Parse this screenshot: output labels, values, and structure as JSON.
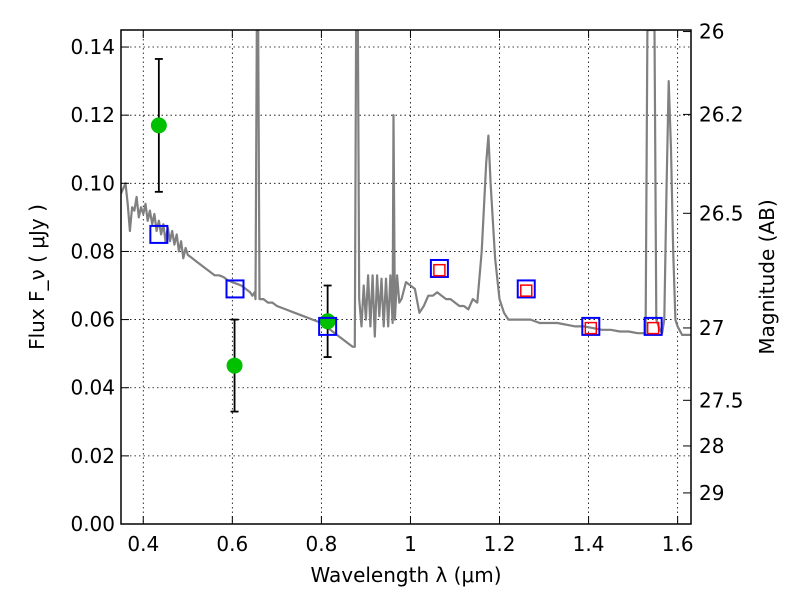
{
  "chart_data": {
    "type": "scatter",
    "xlabel": "Wavelength  λ (μm)",
    "ylabel": "Flux  F_ν  ( μJy )",
    "ylabel_right": "Magnitude (AB)",
    "xlim": [
      0.35,
      1.63
    ],
    "ylim": [
      0.0,
      0.145
    ],
    "grid": true,
    "x_ticks": [
      0.4,
      0.6,
      0.8,
      1.0,
      1.2,
      1.4,
      1.6
    ],
    "x_tick_labels": [
      "0.4",
      "0.6",
      "0.8",
      "1",
      "1.2",
      "1.4",
      "1.6"
    ],
    "y_ticks": [
      0.0,
      0.02,
      0.04,
      0.06,
      0.08,
      0.1,
      0.12,
      0.14
    ],
    "y_tick_labels": [
      "0.00",
      "0.02",
      "0.04",
      "0.06",
      "0.08",
      "0.10",
      "0.12",
      "0.14"
    ],
    "right_ticks": [
      {
        "label": "26",
        "mag": 26.0
      },
      {
        "label": "26.2",
        "mag": 26.2
      },
      {
        "label": "26.5",
        "mag": 26.5
      },
      {
        "label": "27",
        "mag": 27.0
      },
      {
        "label": "27.5",
        "mag": 27.5
      },
      {
        "label": "28",
        "mag": 28.0
      },
      {
        "label": "29",
        "mag": 29.0
      }
    ],
    "series": [
      {
        "marker": "line",
        "color": "#808080",
        "points": [
          [
            0.35,
            0.097
          ],
          [
            0.36,
            0.1
          ],
          [
            0.365,
            0.094
          ],
          [
            0.37,
            0.086
          ],
          [
            0.375,
            0.093
          ],
          [
            0.38,
            0.092
          ],
          [
            0.385,
            0.096
          ],
          [
            0.39,
            0.09
          ],
          [
            0.395,
            0.093
          ],
          [
            0.4,
            0.091
          ],
          [
            0.405,
            0.094
          ],
          [
            0.41,
            0.089
          ],
          [
            0.415,
            0.092
          ],
          [
            0.42,
            0.088
          ],
          [
            0.425,
            0.091
          ],
          [
            0.43,
            0.086
          ],
          [
            0.435,
            0.089
          ],
          [
            0.44,
            0.085
          ],
          [
            0.445,
            0.088
          ],
          [
            0.45,
            0.083
          ],
          [
            0.455,
            0.087
          ],
          [
            0.46,
            0.083
          ],
          [
            0.465,
            0.086
          ],
          [
            0.47,
            0.082
          ],
          [
            0.475,
            0.085
          ],
          [
            0.48,
            0.08
          ],
          [
            0.485,
            0.083
          ],
          [
            0.49,
            0.078
          ],
          [
            0.495,
            0.081
          ],
          [
            0.5,
            0.079
          ],
          [
            0.51,
            0.078
          ],
          [
            0.52,
            0.077
          ],
          [
            0.53,
            0.076
          ],
          [
            0.54,
            0.075
          ],
          [
            0.55,
            0.074
          ],
          [
            0.56,
            0.073
          ],
          [
            0.57,
            0.073
          ],
          [
            0.58,
            0.0725
          ],
          [
            0.59,
            0.0715
          ],
          [
            0.6,
            0.071
          ],
          [
            0.61,
            0.0705
          ],
          [
            0.62,
            0.07
          ],
          [
            0.63,
            0.069
          ],
          [
            0.64,
            0.068
          ],
          [
            0.645,
            0.067
          ],
          [
            0.65,
            0.068
          ],
          [
            0.652,
            0.066
          ],
          [
            0.655,
            0.145
          ],
          [
            0.658,
            0.145
          ],
          [
            0.661,
            0.066
          ],
          [
            0.67,
            0.066
          ],
          [
            0.68,
            0.065
          ],
          [
            0.69,
            0.065
          ],
          [
            0.7,
            0.064
          ],
          [
            0.72,
            0.063
          ],
          [
            0.74,
            0.062
          ],
          [
            0.76,
            0.061
          ],
          [
            0.78,
            0.06
          ],
          [
            0.8,
            0.059
          ],
          [
            0.82,
            0.057
          ],
          [
            0.84,
            0.055
          ],
          [
            0.85,
            0.054
          ],
          [
            0.86,
            0.053
          ],
          [
            0.87,
            0.052
          ],
          [
            0.875,
            0.052
          ],
          [
            0.878,
            0.145
          ],
          [
            0.882,
            0.145
          ],
          [
            0.885,
            0.066
          ],
          [
            0.89,
            0.058
          ],
          [
            0.895,
            0.07
          ],
          [
            0.9,
            0.06
          ],
          [
            0.905,
            0.073
          ],
          [
            0.91,
            0.058
          ],
          [
            0.915,
            0.073
          ],
          [
            0.92,
            0.055
          ],
          [
            0.925,
            0.073
          ],
          [
            0.93,
            0.061
          ],
          [
            0.935,
            0.072
          ],
          [
            0.94,
            0.058
          ],
          [
            0.945,
            0.072
          ],
          [
            0.95,
            0.058
          ],
          [
            0.955,
            0.073
          ],
          [
            0.96,
            0.059
          ],
          [
            0.962,
            0.12
          ],
          [
            0.965,
            0.06
          ],
          [
            0.97,
            0.073
          ],
          [
            0.975,
            0.065
          ],
          [
            0.98,
            0.066
          ],
          [
            0.99,
            0.071
          ],
          [
            1.0,
            0.07
          ],
          [
            1.01,
            0.069
          ],
          [
            1.02,
            0.062
          ],
          [
            1.03,
            0.064
          ],
          [
            1.04,
            0.067
          ],
          [
            1.05,
            0.067
          ],
          [
            1.06,
            0.068
          ],
          [
            1.07,
            0.067
          ],
          [
            1.08,
            0.066
          ],
          [
            1.09,
            0.066
          ],
          [
            1.1,
            0.065
          ],
          [
            1.11,
            0.064
          ],
          [
            1.12,
            0.064
          ],
          [
            1.13,
            0.063
          ],
          [
            1.14,
            0.066
          ],
          [
            1.15,
            0.065
          ],
          [
            1.16,
            0.08
          ],
          [
            1.17,
            0.106
          ],
          [
            1.175,
            0.114
          ],
          [
            1.18,
            0.1
          ],
          [
            1.19,
            0.078
          ],
          [
            1.2,
            0.066
          ],
          [
            1.21,
            0.062
          ],
          [
            1.22,
            0.06
          ],
          [
            1.23,
            0.06
          ],
          [
            1.25,
            0.06
          ],
          [
            1.27,
            0.06
          ],
          [
            1.29,
            0.059
          ],
          [
            1.31,
            0.059
          ],
          [
            1.33,
            0.059
          ],
          [
            1.35,
            0.0585
          ],
          [
            1.37,
            0.058
          ],
          [
            1.39,
            0.058
          ],
          [
            1.41,
            0.0575
          ],
          [
            1.43,
            0.057
          ],
          [
            1.45,
            0.057
          ],
          [
            1.47,
            0.0565
          ],
          [
            1.49,
            0.0565
          ],
          [
            1.51,
            0.056
          ],
          [
            1.52,
            0.056
          ],
          [
            1.528,
            0.056
          ],
          [
            1.532,
            0.145
          ],
          [
            1.548,
            0.145
          ],
          [
            1.552,
            0.06
          ],
          [
            1.56,
            0.057
          ],
          [
            1.565,
            0.056
          ],
          [
            1.57,
            0.06
          ],
          [
            1.575,
            0.098
          ],
          [
            1.58,
            0.13
          ],
          [
            1.585,
            0.11
          ],
          [
            1.59,
            0.08
          ],
          [
            1.595,
            0.06
          ],
          [
            1.6,
            0.058
          ],
          [
            1.61,
            0.0555
          ],
          [
            1.63,
            0.0555
          ]
        ]
      },
      {
        "marker": "green-circle-errorbar",
        "color": "#00c000",
        "points": [
          {
            "x": 0.435,
            "y": 0.117,
            "err": 0.0195
          },
          {
            "x": 0.605,
            "y": 0.0465,
            "err": 0.0135
          },
          {
            "x": 0.814,
            "y": 0.0595,
            "err": 0.0105
          }
        ]
      },
      {
        "marker": "blue-square",
        "color": "#0000ff",
        "points": [
          {
            "x": 0.435,
            "y": 0.085
          },
          {
            "x": 0.606,
            "y": 0.069
          },
          {
            "x": 0.814,
            "y": 0.058
          },
          {
            "x": 1.065,
            "y": 0.075
          },
          {
            "x": 1.26,
            "y": 0.069
          },
          {
            "x": 1.405,
            "y": 0.058
          },
          {
            "x": 1.545,
            "y": 0.058
          }
        ]
      },
      {
        "marker": "red-square",
        "color": "#ff0000",
        "points": [
          {
            "x": 1.065,
            "y": 0.0745
          },
          {
            "x": 1.26,
            "y": 0.0685
          },
          {
            "x": 1.405,
            "y": 0.0575
          },
          {
            "x": 1.545,
            "y": 0.0575
          }
        ]
      }
    ]
  }
}
